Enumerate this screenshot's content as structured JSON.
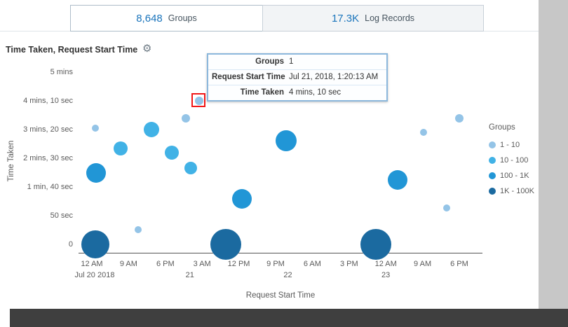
{
  "icons": {
    "gear": "⚙"
  },
  "colors": {
    "highlight_red": "#f11717",
    "tab_count_blue": "#1b75bc"
  },
  "tabs": [
    {
      "count": "8,648",
      "label": "Groups",
      "active": true
    },
    {
      "count": "17.3K",
      "label": "Log Records",
      "active": false
    }
  ],
  "panel": {
    "title": "Time Taken, Request Start Time"
  },
  "tooltip": {
    "rows": [
      {
        "label": "Groups",
        "value": "1"
      },
      {
        "label": "Request Start Time",
        "value": "Jul 21, 2018, 1:20:13 AM"
      },
      {
        "label": "Time Taken",
        "value": "4 mins, 10 sec"
      }
    ]
  },
  "chart_data": {
    "type": "scatter",
    "subtype": "bubble",
    "title": "Time Taken, Request Start Time",
    "xlabel": "Request Start Time",
    "ylabel": "Time Taken",
    "x_range": [
      "Jul 20 2018 12:00 AM",
      "Jul 23 2018 6:00 PM"
    ],
    "y_range_seconds": [
      0,
      300
    ],
    "y_axis": {
      "ticks": [
        {
          "label": "5 mins",
          "seconds": 300
        },
        {
          "label": "4 mins, 10 sec",
          "seconds": 250
        },
        {
          "label": "3 mins, 20 sec",
          "seconds": 200
        },
        {
          "label": "2 mins, 30 sec",
          "seconds": 150
        },
        {
          "label": "1 min, 40 sec",
          "seconds": 100
        },
        {
          "label": "50 sec",
          "seconds": 50
        },
        {
          "label": "0",
          "seconds": 0
        }
      ]
    },
    "x_axis": {
      "ticks": [
        {
          "label": "12 AM",
          "hours": 0
        },
        {
          "label": "9 AM",
          "hours": 9
        },
        {
          "label": "6 PM",
          "hours": 18
        },
        {
          "label": "3 AM",
          "hours": 27
        },
        {
          "label": "12 PM",
          "hours": 36
        },
        {
          "label": "9 PM",
          "hours": 45
        },
        {
          "label": "6 AM",
          "hours": 54
        },
        {
          "label": "3 PM",
          "hours": 63
        },
        {
          "label": "12 AM",
          "hours": 72
        },
        {
          "label": "9 AM",
          "hours": 81
        },
        {
          "label": "6 PM",
          "hours": 90
        }
      ],
      "dates": [
        {
          "label": "Jul 20 2018",
          "hours": 0
        },
        {
          "label": "21",
          "hours": 24
        },
        {
          "label": "22",
          "hours": 48
        },
        {
          "label": "23",
          "hours": 72
        }
      ]
    },
    "legend": {
      "title": "Groups",
      "position": "right",
      "items": [
        {
          "label": "1 - 10",
          "color": "#94c4e7"
        },
        {
          "label": "10 - 100",
          "color": "#41b2e6"
        },
        {
          "label": "100 - 1K",
          "color": "#2196d6"
        },
        {
          "label": "1K - 100K",
          "color": "#1b6aa0"
        }
      ]
    },
    "points": [
      {
        "time": "Jul 20 ~1:00 AM",
        "hours": 0.9,
        "seconds": 202,
        "bucket": "1 - 10",
        "r": 5
      },
      {
        "time": "Jul 20 ~7:00 AM",
        "hours": 7.0,
        "seconds": 167,
        "bucket": "10 - 100",
        "r": 10
      },
      {
        "time": "Jul 20 ~1:00 AM",
        "hours": 1.0,
        "seconds": 124,
        "bucket": "100 - 1K",
        "r": 14
      },
      {
        "time": "Jul 20 ~1:00 AM",
        "hours": 0.9,
        "seconds": 0,
        "bucket": "1K - 100K",
        "r": 20
      },
      {
        "time": "Jul 20 ~11:20 AM",
        "hours": 11.3,
        "seconds": 26,
        "bucket": "1 - 10",
        "r": 5
      },
      {
        "time": "Jul 20 ~2:40 PM",
        "hours": 14.6,
        "seconds": 200,
        "bucket": "10 - 100",
        "r": 11
      },
      {
        "time": "Jul 20 ~7:30 PM",
        "hours": 19.6,
        "seconds": 160,
        "bucket": "10 - 100",
        "r": 10
      },
      {
        "time": "Jul 20 ~11:00 PM",
        "hours": 23.0,
        "seconds": 220,
        "bucket": "1 - 10",
        "r": 6
      },
      {
        "time": "Jul 21, 1:20:13 AM",
        "hours": 26.34,
        "seconds": 250,
        "bucket": "1 - 10",
        "r": 6,
        "highlighted": true
      },
      {
        "time": "Jul 21 ~12:15 AM",
        "hours": 24.2,
        "seconds": 133,
        "bucket": "10 - 100",
        "r": 9
      },
      {
        "time": "Jul 21 ~12:45 PM",
        "hours": 36.8,
        "seconds": 79,
        "bucket": "100 - 1K",
        "r": 14
      },
      {
        "time": "Jul 21 ~8:50 AM",
        "hours": 32.8,
        "seconds": 0,
        "bucket": "1K - 100K",
        "r": 22
      },
      {
        "time": "Jul 21 ~11:35 PM",
        "hours": 47.6,
        "seconds": 180,
        "bucket": "100 - 1K",
        "r": 15
      },
      {
        "time": "Jul 22 ~9:35 PM",
        "hours": 69.6,
        "seconds": 0,
        "bucket": "1K - 100K",
        "r": 22
      },
      {
        "time": "Jul 23 ~2:55 AM",
        "hours": 74.9,
        "seconds": 112,
        "bucket": "100 - 1K",
        "r": 14
      },
      {
        "time": "Jul 23 ~9:15 AM",
        "hours": 81.3,
        "seconds": 195,
        "bucket": "1 - 10",
        "r": 5
      },
      {
        "time": "Jul 23 ~2:55 PM",
        "hours": 86.9,
        "seconds": 63,
        "bucket": "1 - 10",
        "r": 5
      },
      {
        "time": "Jul 23 ~6:00 PM",
        "hours": 90.0,
        "seconds": 220,
        "bucket": "1 - 10",
        "r": 6
      }
    ]
  }
}
